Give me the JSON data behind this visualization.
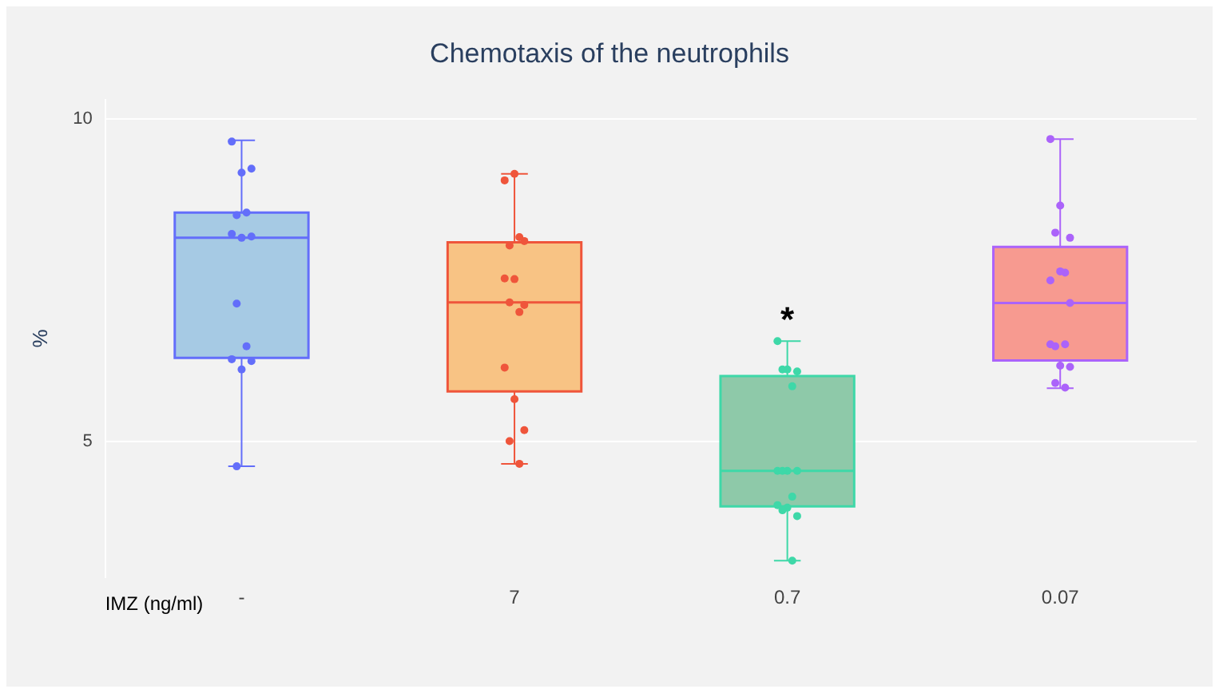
{
  "chart_data": {
    "type": "box",
    "title": "Chemotaxis of the neutrophils",
    "xlabel": "IMZ (ng/ml)",
    "ylabel": "%",
    "categories": [
      "-",
      "7",
      "0.7",
      "0.07"
    ],
    "colors": [
      "#a6cae4",
      "#f8c384",
      "#8ec9a9",
      "#f79a90"
    ],
    "boxes": [
      {
        "low": 4.62,
        "q1": 6.3,
        "median": 8.16,
        "q3": 8.55,
        "high": 9.67
      },
      {
        "low": 4.66,
        "q1": 5.78,
        "median": 7.16,
        "q3": 8.09,
        "high": 9.15
      },
      {
        "low": 3.16,
        "q1": 4.0,
        "median": 4.55,
        "q3": 6.02,
        "high": 6.56
      },
      {
        "low": 5.83,
        "q1": 6.26,
        "median": 7.15,
        "q3": 8.02,
        "high": 9.69
      }
    ],
    "series": [
      {
        "type": "scatter",
        "color": "#636efa",
        "x": [
          "-",
          "-",
          "-",
          "-",
          "-",
          "-",
          "-",
          "-",
          "-",
          "-",
          "-",
          "-",
          "-",
          "-"
        ],
        "values": [
          9.65,
          9.17,
          9.23,
          8.51,
          8.55,
          8.22,
          8.16,
          8.18,
          7.14,
          6.48,
          6.28,
          6.12,
          6.25,
          4.62
        ]
      },
      {
        "type": "scatter",
        "color": "#ef553b",
        "x": [
          "7",
          "7",
          "7",
          "7",
          "7",
          "7",
          "7",
          "7",
          "7",
          "7",
          "7",
          "7",
          "7",
          "7",
          "7"
        ],
        "values": [
          9.05,
          9.15,
          8.11,
          8.04,
          8.17,
          7.53,
          7.52,
          7.12,
          7.16,
          7.01,
          6.15,
          5.66,
          5.18,
          5.01,
          4.66
        ]
      },
      {
        "type": "scatter",
        "color": "#3ed8a8",
        "x": [
          "0.7",
          "0.7",
          "0.7",
          "0.7",
          "0.7",
          "0.7",
          "0.7",
          "0.7",
          "0.7",
          "0.7",
          "0.7",
          "0.7",
          "0.7",
          "0.7",
          "0.7"
        ],
        "values": [
          6.56,
          6.12,
          6.09,
          6.12,
          5.86,
          4.55,
          4.55,
          4.55,
          4.55,
          4.15,
          4.02,
          3.98,
          3.85,
          3.94,
          3.16
        ]
      },
      {
        "type": "scatter",
        "color": "#ab63fa",
        "x": [
          "0.07",
          "0.07",
          "0.07",
          "0.07",
          "0.07",
          "0.07",
          "0.07",
          "0.07",
          "0.07",
          "0.07",
          "0.07",
          "0.07",
          "0.07",
          "0.07",
          "0.07"
        ],
        "values": [
          9.69,
          8.66,
          8.16,
          8.24,
          7.62,
          7.5,
          7.64,
          7.15,
          6.48,
          6.51,
          6.51,
          6.18,
          6.16,
          5.91,
          5.84
        ]
      }
    ],
    "annotations": [
      "*"
    ],
    "ylim": [
      2.9,
      10.3
    ],
    "yticks": [
      5,
      10
    ],
    "grid": "y",
    "legend": false,
    "marker": "circle"
  }
}
